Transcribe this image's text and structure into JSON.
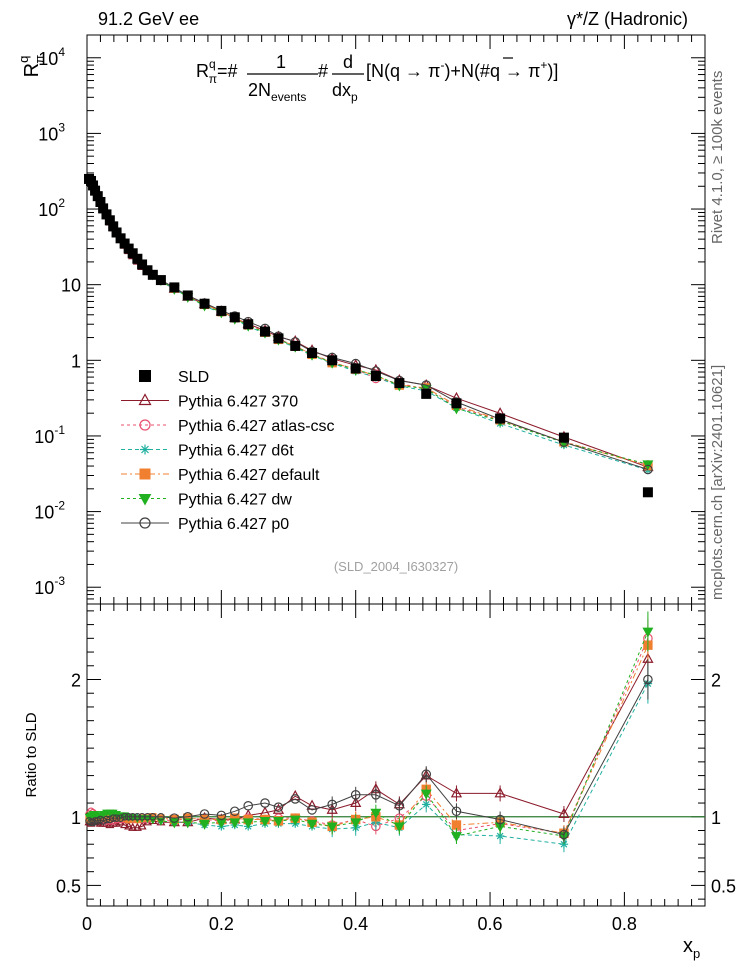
{
  "header": {
    "left_label": "91.2 GeV ee",
    "right_label": "γ*/Z (Hadronic)"
  },
  "side_labels": {
    "rivet": "Rivet 4.1.0, ≥ 100k events",
    "mcplots": "mcplots.cern.ch [arXiv:2401.10621]"
  },
  "chart_data": [
    {
      "type": "scatter",
      "panel": "main",
      "title": "",
      "ylabel_text": "R",
      "ylabel_sup": "q",
      "ylabel_sub": "π",
      "xlabel": "",
      "yscale": "log",
      "ylim": [
        0.0006,
        20000
      ],
      "xlim": [
        0,
        0.92
      ],
      "ytick_values": [
        0.001,
        0.01,
        0.1,
        1,
        10,
        100,
        1000,
        10000
      ],
      "ytick_labels": [
        {
          "base": "10",
          "exp": "-3"
        },
        {
          "base": "10",
          "exp": "-2"
        },
        {
          "base": "10",
          "exp": "-1"
        },
        {
          "base": "1",
          "exp": ""
        },
        {
          "base": "10",
          "exp": ""
        },
        {
          "base": "10",
          "exp": "2"
        },
        {
          "base": "10",
          "exp": "3"
        },
        {
          "base": "10",
          "exp": "4"
        }
      ],
      "formula": {
        "lhs": "R",
        "lhs_sup": "q",
        "lhs_sub": "π",
        "p1": "=#",
        "frac1_num": "1",
        "frac1_den": "2N",
        "frac1_den_sub": "events",
        "p2": "#",
        "frac2_num": "d",
        "frac2_den": "dx",
        "frac2_den_sub": "p",
        "p3": "[N(q → π",
        "p3_sup": "-",
        "p4": ")+N(#",
        "qbar": "q",
        "p5": " → π",
        "p5_sup": "+",
        "p6": ")]"
      },
      "watermark": "(SLD_2004_I630327)",
      "x": [
        0.003,
        0.006,
        0.009,
        0.012,
        0.016,
        0.02,
        0.024,
        0.029,
        0.034,
        0.039,
        0.044,
        0.05,
        0.056,
        0.062,
        0.068,
        0.075,
        0.082,
        0.09,
        0.098,
        0.11,
        0.13,
        0.15,
        0.175,
        0.2,
        0.22,
        0.24,
        0.265,
        0.285,
        0.31,
        0.335,
        0.365,
        0.4,
        0.43,
        0.465,
        0.505,
        0.55,
        0.615,
        0.71,
        0.835
      ],
      "series": [
        {
          "name": "SLD",
          "color": "#000000",
          "marker": "square",
          "values": [
            250,
            235,
            205,
            175,
            148,
            124,
            102,
            85,
            71,
            59,
            49,
            41,
            35,
            30,
            26,
            22,
            18.5,
            15.5,
            13.5,
            11.5,
            9.2,
            7.2,
            5.6,
            4.5,
            3.7,
            3.0,
            2.4,
            1.95,
            1.55,
            1.25,
            1.0,
            0.78,
            0.62,
            0.5,
            0.36,
            0.27,
            0.17,
            0.095,
            0.018
          ]
        },
        {
          "name": "Pythia 6.427 370",
          "color": "#8b1a2a",
          "marker": "triangle",
          "ratio": [
            0.96,
            0.95,
            0.96,
            0.97,
            0.96,
            0.95,
            0.95,
            0.95,
            0.94,
            0.95,
            0.95,
            0.96,
            0.94,
            0.93,
            0.92,
            0.92,
            0.93,
            0.96,
            0.97,
            0.96,
            0.96,
            0.96,
            0.99,
            0.98,
            0.98,
            1.01,
            1.03,
            1.05,
            1.15,
            1.08,
            1.05,
            1.1,
            1.2,
            1.09,
            1.3,
            1.17,
            1.17,
            1.02,
            2.15
          ]
        },
        {
          "name": "Pythia 6.427 atlas-csc",
          "color": "#e8506e",
          "marker": "circle",
          "ratio": [
            1.02,
            1.04,
            1.03,
            1.01,
            0.99,
            0.98,
            0.98,
            0.97,
            0.97,
            0.97,
            0.98,
            0.98,
            0.98,
            0.99,
            0.98,
            0.98,
            0.98,
            0.98,
            0.99,
            0.98,
            0.97,
            0.99,
            0.98,
            0.97,
            0.98,
            0.99,
            0.98,
            0.99,
            0.99,
            0.97,
            0.94,
            0.98,
            0.93,
            0.99,
            1.15,
            0.9,
            0.95,
            0.88,
            2.3
          ]
        },
        {
          "name": "Pythia 6.427 d6t",
          "color": "#20b0a0",
          "marker": "star",
          "ratio": [
            0.97,
            0.98,
            0.99,
            0.99,
            1.0,
            1.0,
            1.01,
            1.0,
            1.0,
            1.01,
            1.01,
            1.0,
            1.0,
            1.0,
            1.0,
            1.0,
            0.99,
            0.98,
            0.99,
            0.97,
            0.96,
            0.96,
            0.94,
            0.93,
            0.94,
            0.93,
            0.95,
            0.95,
            0.95,
            0.93,
            0.91,
            0.92,
            0.96,
            0.92,
            1.09,
            0.87,
            0.86,
            0.8,
            1.97
          ]
        },
        {
          "name": "Pythia 6.427 default",
          "color": "#f08030",
          "marker": "square",
          "ratio": [
            0.98,
            0.98,
            0.98,
            0.99,
            0.99,
            0.99,
            1.0,
            0.99,
            0.99,
            0.99,
            0.99,
            0.99,
            0.99,
            0.98,
            0.99,
            0.98,
            0.99,
            0.99,
            1.0,
            0.99,
            0.98,
            0.99,
            0.98,
            0.98,
            0.99,
            0.98,
            0.98,
            0.97,
            0.99,
            0.96,
            0.93,
            0.98,
            1.0,
            0.94,
            1.2,
            0.94,
            0.96,
            0.88,
            2.25
          ]
        },
        {
          "name": "Pythia 6.427 dw",
          "color": "#20b020",
          "marker": "triangle-down",
          "ratio": [
            1.0,
            1.01,
            1.02,
            1.02,
            1.01,
            1.01,
            1.02,
            1.03,
            1.03,
            1.03,
            1.02,
            1.01,
            1.01,
            1.0,
            1.0,
            0.99,
            0.99,
            0.99,
            0.98,
            0.97,
            0.96,
            0.96,
            0.95,
            0.96,
            0.96,
            0.96,
            0.97,
            0.97,
            0.98,
            0.95,
            0.93,
            0.96,
            1.03,
            0.93,
            1.17,
            0.86,
            0.93,
            0.86,
            2.35
          ]
        },
        {
          "name": "Pythia 6.427 p0",
          "color": "#404040",
          "marker": "circle",
          "ratio": [
            0.97,
            0.96,
            0.96,
            0.97,
            0.97,
            0.98,
            0.97,
            0.98,
            0.98,
            0.99,
            0.99,
            0.99,
            1.0,
            1.0,
            1.0,
            1.0,
            1.0,
            1.0,
            1.0,
            1.0,
            0.99,
            1.0,
            1.02,
            1.01,
            1.04,
            1.08,
            1.1,
            1.07,
            1.13,
            1.05,
            1.09,
            1.16,
            1.16,
            1.08,
            1.31,
            1.04,
            0.98,
            0.87,
            2.0
          ]
        }
      ],
      "legend": {
        "position": "center-left"
      }
    },
    {
      "type": "line",
      "panel": "ratio",
      "title": "",
      "ylabel": "Ratio to SLD",
      "xlabel": "x",
      "xlabel_sub": "p",
      "yscale": "linear",
      "ylim": [
        0.35,
        2.55
      ],
      "xlim": [
        0,
        0.92
      ],
      "ytick_labels": [
        "0.5",
        "1",
        "2"
      ],
      "ytick_values": [
        0.5,
        1,
        2
      ],
      "xtick_labels": [
        "0",
        "0.2",
        "0.4",
        "0.6",
        "0.8"
      ],
      "xtick_values": [
        0,
        0.2,
        0.4,
        0.6,
        0.8
      ],
      "reference_line": 1,
      "reference_color": "#2e7d32"
    }
  ]
}
